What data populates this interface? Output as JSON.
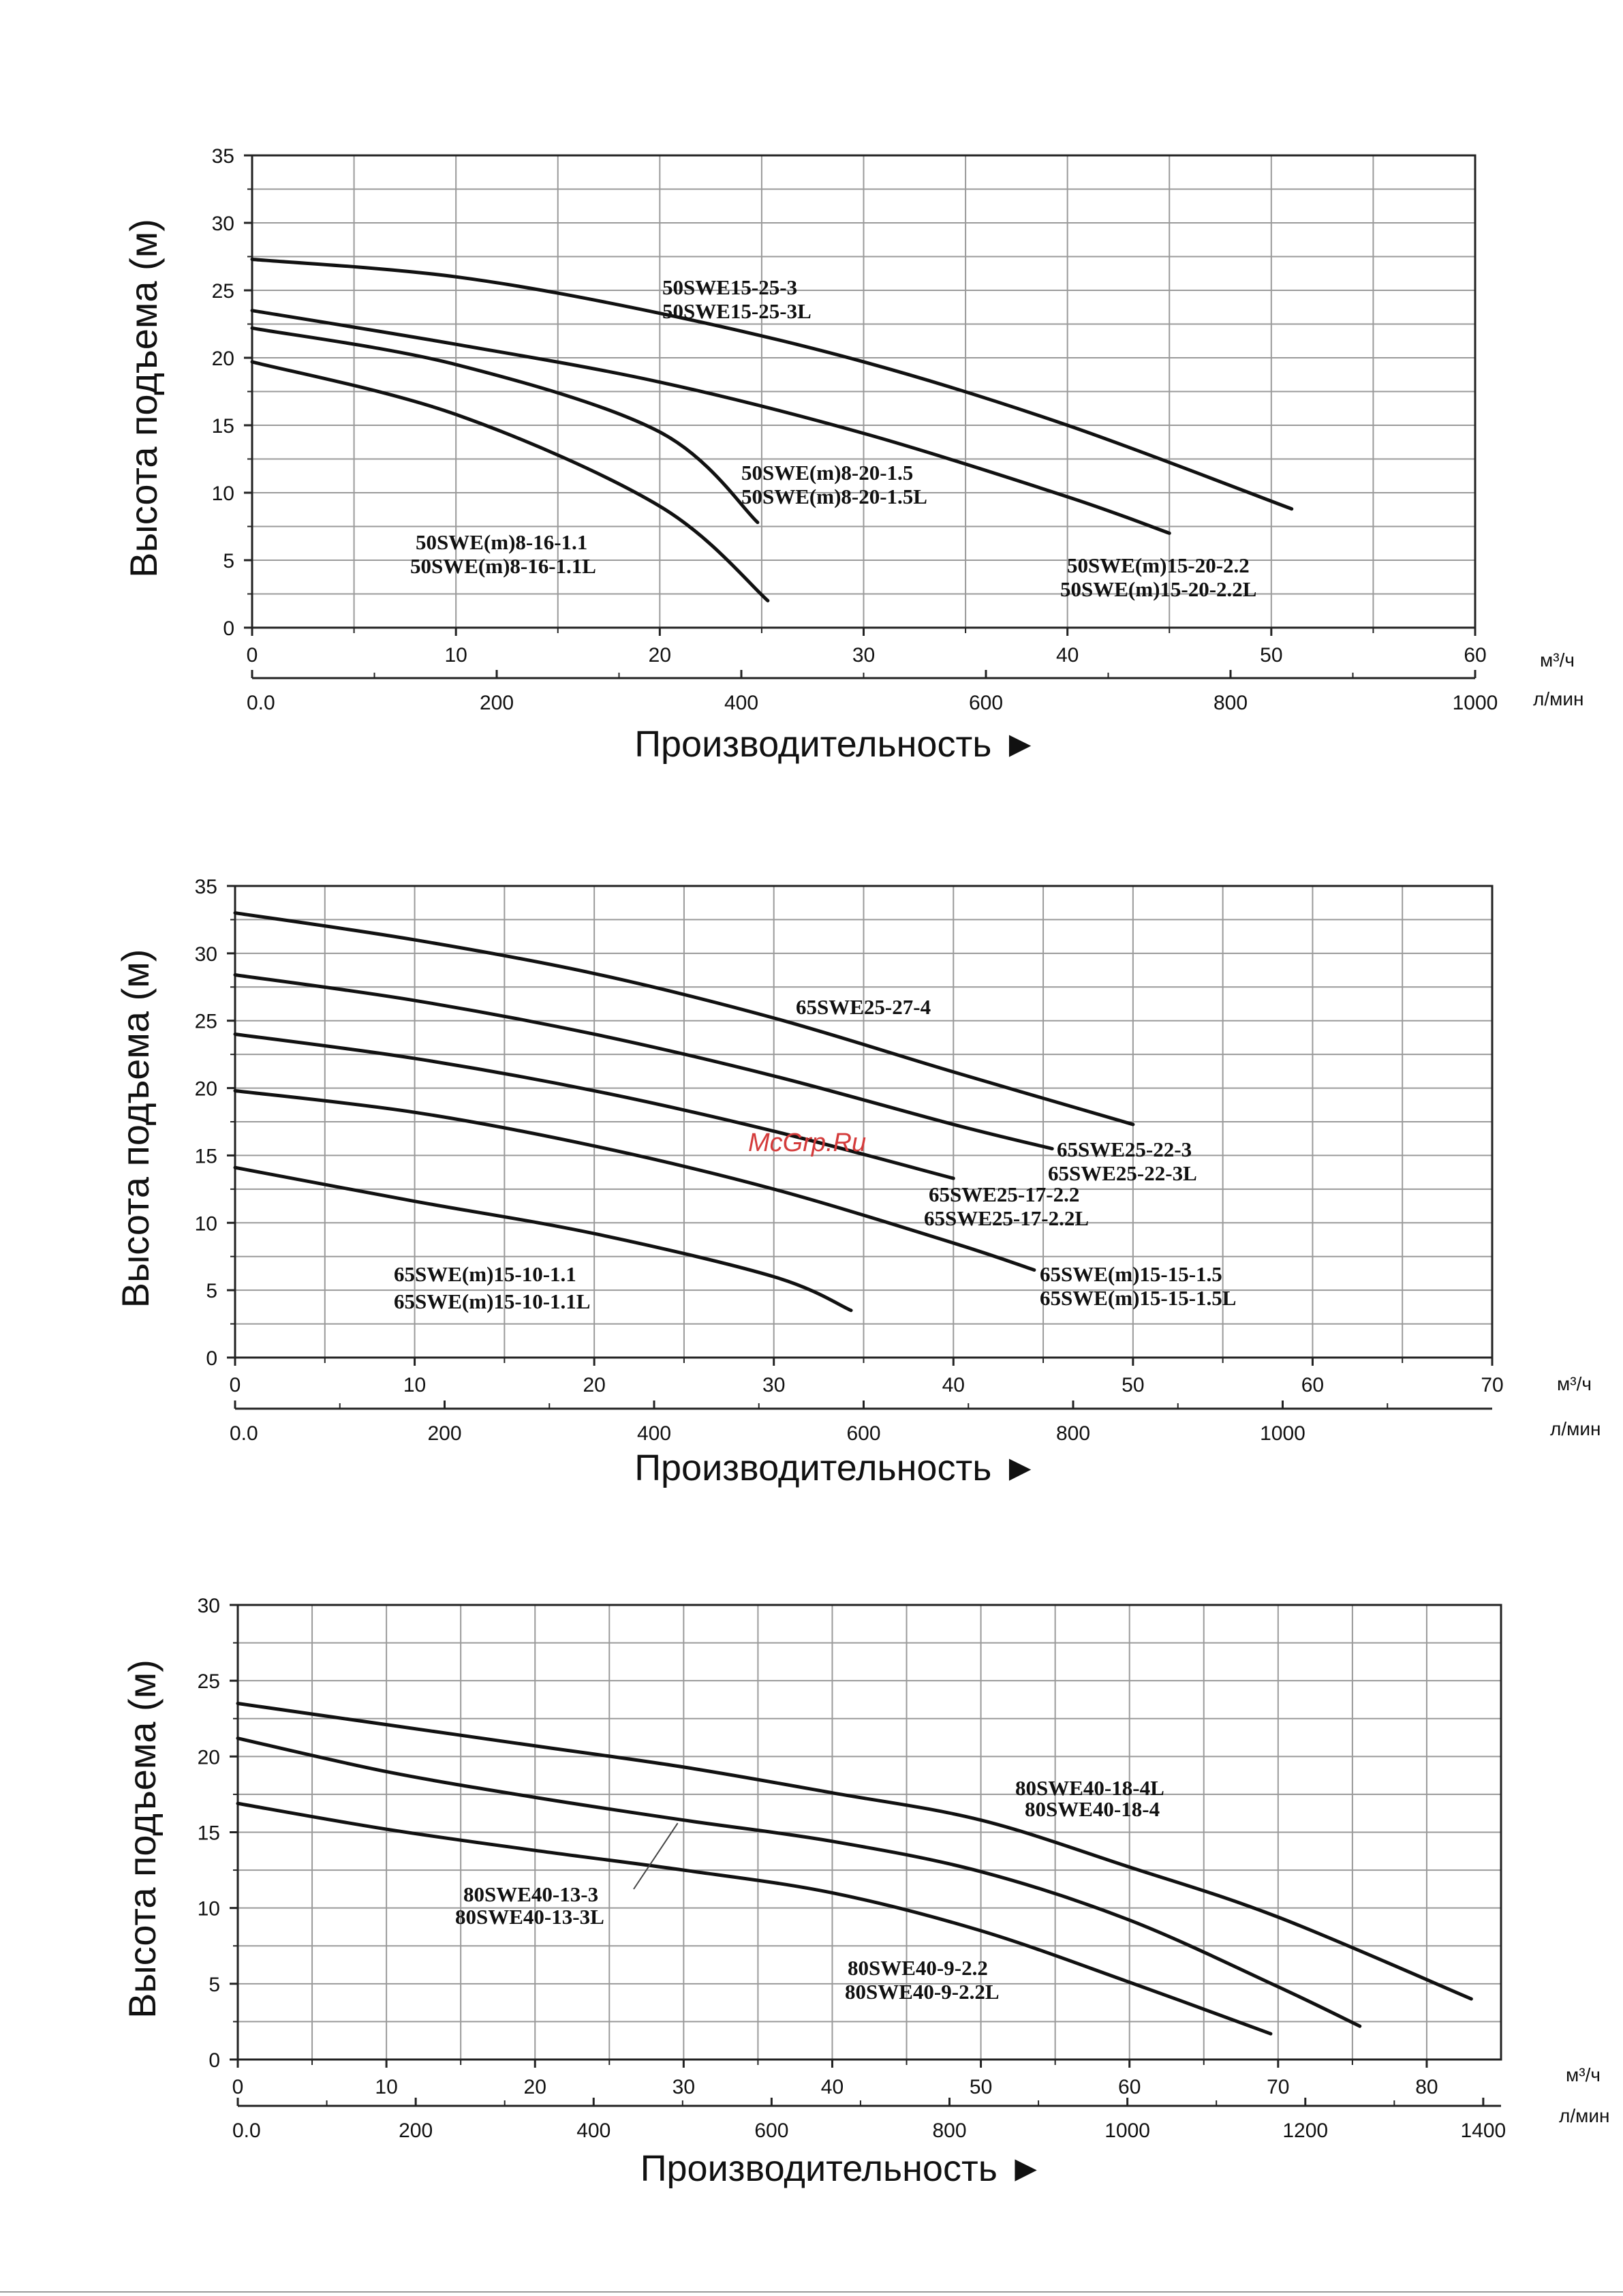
{
  "watermark": "McGrp.Ru",
  "chart_data": [
    {
      "type": "line",
      "ylabel": "Высота подъема (м)",
      "xlabel": "Производительность ►",
      "x_unit": "м³/ч",
      "x2_unit": "л/мин",
      "xlim": [
        0,
        60
      ],
      "ylim": [
        0,
        35
      ],
      "x_ticks": [
        0,
        10,
        20,
        30,
        40,
        50,
        60
      ],
      "y_ticks": [
        0,
        5,
        10,
        15,
        20,
        25,
        30,
        35
      ],
      "x2_ticks": [
        0,
        200,
        400,
        600,
        800,
        1000
      ],
      "x2_tick_labels": [
        "0.0",
        "200",
        "400",
        "600",
        "800",
        "1000"
      ],
      "grid": true,
      "series": [
        {
          "labels": [
            "50SWE15-25-3",
            "50SWE15-25-3L"
          ],
          "x": [
            0,
            10,
            20,
            30,
            40,
            51
          ],
          "y": [
            27.3,
            26.0,
            23.3,
            19.7,
            15.0,
            8.8
          ]
        },
        {
          "labels": [
            "50SWE(m)15-20-2.2",
            "50SWE(m)15-20-2.2L"
          ],
          "x": [
            0,
            10,
            20,
            30,
            40,
            45
          ],
          "y": [
            23.5,
            21.0,
            18.2,
            14.4,
            9.7,
            7.0
          ]
        },
        {
          "labels": [
            "50SWE(m)8-20-1.5",
            "50SWE(m)8-20-1.5L"
          ],
          "x": [
            0,
            10,
            20,
            24.8
          ],
          "y": [
            22.2,
            19.5,
            14.5,
            7.8
          ]
        },
        {
          "labels": [
            "50SWE(m)8-16-1.1",
            "50SWE(m)8-16-1.1L"
          ],
          "x": [
            0,
            10,
            20,
            25.3
          ],
          "y": [
            19.7,
            15.8,
            9.0,
            2.0
          ]
        }
      ]
    },
    {
      "type": "line",
      "ylabel": "Высота подъема (м)",
      "xlabel": "Производительность ►",
      "x_unit": "м³/ч",
      "x2_unit": "л/мин",
      "xlim": [
        0,
        70
      ],
      "ylim": [
        0,
        35
      ],
      "x_ticks": [
        0,
        10,
        20,
        30,
        40,
        50,
        60,
        70
      ],
      "y_ticks": [
        0,
        5,
        10,
        15,
        20,
        25,
        30,
        35
      ],
      "x2_ticks": [
        0,
        200,
        400,
        600,
        800,
        1000
      ],
      "x2_tick_labels": [
        "0.0",
        "200",
        "400",
        "600",
        "800",
        "1000"
      ],
      "grid": true,
      "series": [
        {
          "labels": [
            "65SWE25-27-4"
          ],
          "x": [
            0,
            10,
            20,
            30,
            40,
            50
          ],
          "y": [
            33.0,
            31.0,
            28.5,
            25.2,
            21.2,
            17.3
          ]
        },
        {
          "labels": [
            "65SWE25-22-3",
            "65SWE25-22-3L"
          ],
          "x": [
            0,
            10,
            20,
            30,
            40,
            45.5
          ],
          "y": [
            28.4,
            26.5,
            24.0,
            20.9,
            17.3,
            15.5
          ]
        },
        {
          "labels": [
            "65SWE25-17-2.2",
            "65SWE25-17-2.2L"
          ],
          "x": [
            0,
            10,
            20,
            30,
            40
          ],
          "y": [
            24.0,
            22.2,
            19.8,
            16.8,
            13.3
          ]
        },
        {
          "labels": [
            "65SWE(m)15-15-1.5",
            "65SWE(m)15-15-1.5L"
          ],
          "x": [
            0,
            10,
            20,
            30,
            40,
            44.5
          ],
          "y": [
            19.8,
            18.2,
            15.7,
            12.5,
            8.5,
            6.5
          ]
        },
        {
          "labels": [
            "65SWE(m)15-10-1.1",
            "65SWE(m)15-10-1.1L"
          ],
          "x": [
            0,
            10,
            20,
            30,
            34.3
          ],
          "y": [
            14.1,
            11.6,
            9.2,
            6.0,
            3.5
          ]
        }
      ]
    },
    {
      "type": "line",
      "ylabel": "Высота подъема (м)",
      "xlabel": "Производительность ►",
      "x_unit": "м³/ч",
      "x2_unit": "л/мин",
      "xlim": [
        0,
        85
      ],
      "ylim": [
        0,
        30
      ],
      "x_ticks": [
        0,
        10,
        20,
        30,
        40,
        50,
        60,
        70,
        80
      ],
      "y_ticks": [
        0,
        5,
        10,
        15,
        20,
        25,
        30
      ],
      "x2_ticks": [
        0,
        200,
        400,
        600,
        800,
        1000,
        1200,
        1400
      ],
      "x2_tick_labels": [
        "0.0",
        "200",
        "400",
        "600",
        "800",
        "1000",
        "1200",
        "1400"
      ],
      "grid": true,
      "series": [
        {
          "labels": [
            "80SWE40-18-4L",
            "80SWE40-18-4"
          ],
          "x": [
            0,
            10,
            20,
            30,
            40,
            50,
            60,
            70,
            83
          ],
          "y": [
            23.5,
            22.1,
            20.7,
            19.3,
            17.6,
            15.8,
            12.7,
            9.4,
            4.0
          ]
        },
        {
          "labels": [
            "80SWE40-13-3",
            "80SWE40-13-3L"
          ],
          "x": [
            0,
            10,
            20,
            30,
            40,
            50,
            60,
            70,
            75.5
          ],
          "y": [
            21.2,
            19.0,
            17.3,
            15.8,
            14.4,
            12.4,
            9.2,
            4.8,
            2.2
          ]
        },
        {
          "labels": [
            "80SWE40-9-2.2",
            "80SWE40-9-2.2L"
          ],
          "x": [
            0,
            10,
            20,
            30,
            40,
            50,
            60,
            69.5
          ],
          "y": [
            16.9,
            15.2,
            13.8,
            12.5,
            11.0,
            8.5,
            5.1,
            1.7
          ]
        }
      ]
    }
  ]
}
